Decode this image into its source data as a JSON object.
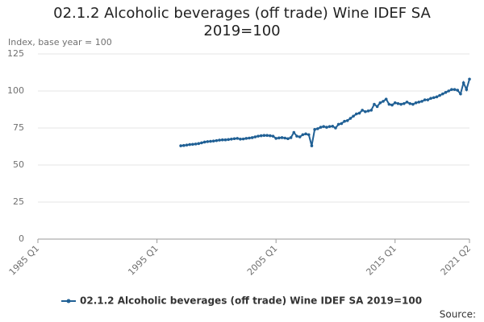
{
  "chart_data": {
    "type": "line",
    "title": "02.1.2 Alcoholic beverages (off trade) Wine IDEF SA 2019=100",
    "y_label": "Index, base year = 100",
    "source_label": "Source:",
    "categories": [
      "1985 Q1",
      null,
      null,
      null,
      null,
      null,
      null,
      null,
      null,
      null,
      null,
      null,
      null,
      null,
      null,
      null,
      null,
      null,
      null,
      null,
      null,
      null,
      null,
      null,
      null,
      null,
      null,
      null,
      null,
      null,
      null,
      null,
      null,
      null,
      null,
      null,
      null,
      null,
      null,
      null,
      "1995 Q1",
      null,
      null,
      null,
      null,
      null,
      null,
      null,
      null,
      null,
      null,
      null,
      null,
      null,
      null,
      null,
      null,
      null,
      null,
      null,
      null,
      null,
      null,
      null,
      null,
      null,
      null,
      null,
      null,
      null,
      null,
      null,
      null,
      null,
      null,
      null,
      null,
      null,
      null,
      null,
      "2005 Q1",
      null,
      null,
      null,
      null,
      null,
      null,
      null,
      null,
      null,
      null,
      null,
      null,
      null,
      null,
      null,
      null,
      null,
      null,
      null,
      null,
      null,
      null,
      null,
      null,
      null,
      null,
      null,
      null,
      null,
      null,
      null,
      null,
      null,
      null,
      null,
      null,
      null,
      null,
      null,
      "2015 Q1",
      null,
      null,
      null,
      null,
      null,
      null,
      null,
      null,
      null,
      null,
      null,
      null,
      null,
      null,
      null,
      null,
      null,
      null,
      null,
      null,
      null,
      null,
      null,
      null,
      "2021 Q2"
    ],
    "series": [
      {
        "name": "02.1.2 Alcoholic beverages (off trade) Wine IDEF SA 2019=100",
        "color": "#206095",
        "values": [
          null,
          null,
          null,
          null,
          null,
          null,
          null,
          null,
          null,
          null,
          null,
          null,
          null,
          null,
          null,
          null,
          null,
          null,
          null,
          null,
          null,
          null,
          null,
          null,
          null,
          null,
          null,
          null,
          null,
          null,
          null,
          null,
          null,
          null,
          null,
          null,
          null,
          null,
          null,
          null,
          null,
          null,
          null,
          null,
          null,
          null,
          null,
          null,
          63,
          63.2,
          63.5,
          63.8,
          64,
          64.2,
          64.5,
          65,
          65.5,
          65.8,
          66,
          66.2,
          66.5,
          66.8,
          67,
          67,
          67.2,
          67.5,
          67.8,
          68,
          67.5,
          67.6,
          68,
          68.2,
          68.5,
          69,
          69.5,
          69.8,
          70,
          70,
          69.8,
          69.5,
          68,
          68.3,
          68.5,
          68.2,
          67.8,
          68.5,
          72,
          69.5,
          69,
          70.5,
          71,
          70.5,
          63,
          74,
          74.5,
          75.5,
          76,
          75.5,
          76,
          76.2,
          75,
          77.5,
          78,
          79.5,
          80,
          81.5,
          83,
          84.5,
          85,
          87,
          86,
          86.5,
          87,
          91,
          89.5,
          92,
          93,
          94.5,
          91,
          90.5,
          92,
          91.5,
          91,
          91.5,
          92.5,
          91.5,
          91,
          92,
          92.5,
          93,
          94,
          94,
          95,
          95.5,
          96,
          97,
          98,
          99,
          100,
          101,
          101,
          100.5,
          98,
          105.5,
          101,
          108
        ]
      }
    ],
    "ylim": [
      0,
      125
    ],
    "yticks": [
      0,
      25,
      50,
      75,
      100,
      125
    ],
    "grid": true,
    "markers": true
  }
}
